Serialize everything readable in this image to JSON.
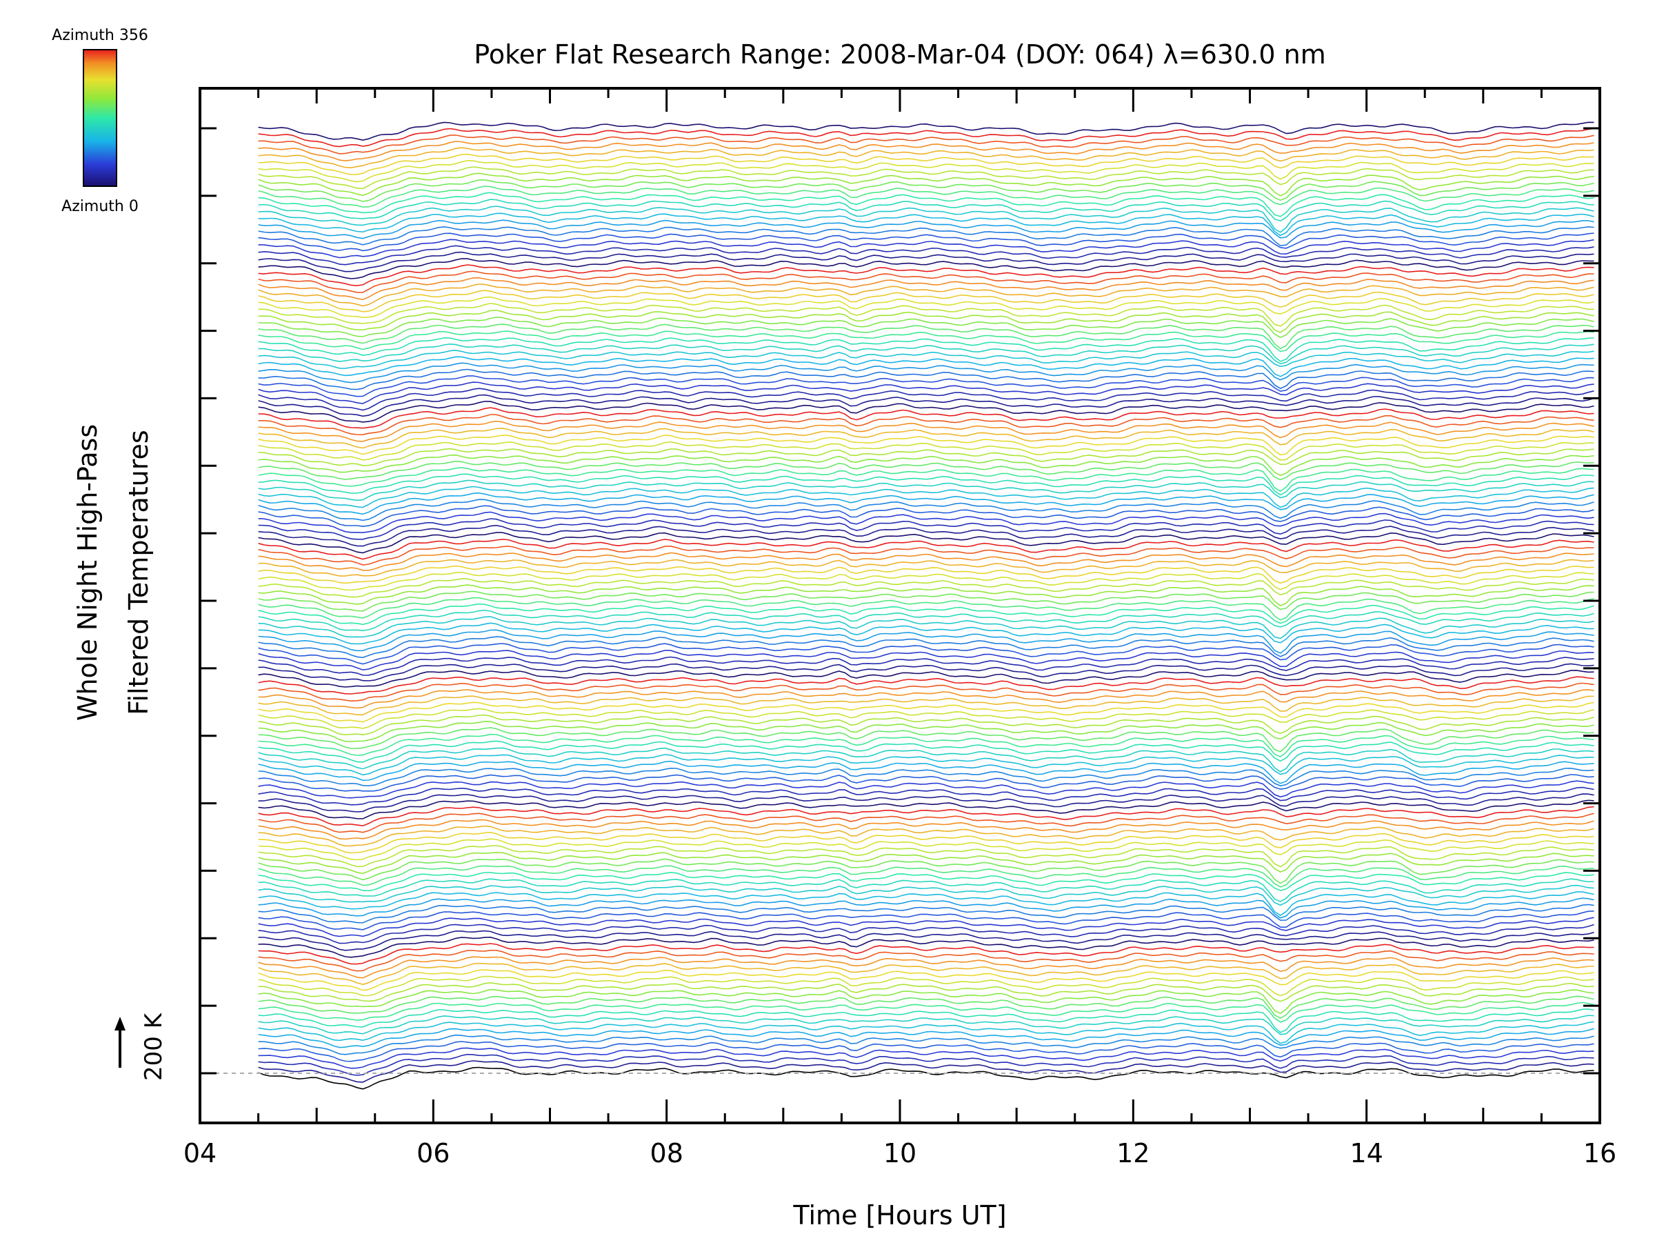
{
  "chart_data": {
    "type": "line",
    "title": "Poker Flat Research Range: 2008-Mar-04 (DOY: 064) λ=630.0 nm",
    "xlabel": "Time [Hours UT]",
    "ylabel_lines": [
      "Whole Night High-Pass",
      "Filtered Temperatures"
    ],
    "x_tick_labels": [
      "04",
      "06",
      "08",
      "10",
      "12",
      "14",
      "16"
    ],
    "xlim": [
      4,
      16
    ],
    "x_minor_step_hours": 0.5,
    "y_major_tick_count": 15,
    "scale_bar_label": "200 K",
    "colorbar": {
      "top_label": "Azimuth 356",
      "bottom_label": "Azimuth 0",
      "min": 0,
      "max": 356,
      "colormap": "rainbow"
    },
    "stacked_series": {
      "count": 146,
      "x_start": 4.5,
      "x_end": 15.95,
      "baseline_dashed": true,
      "azimuth_cycle_lengths": [
        20,
        21,
        20,
        21,
        20,
        22,
        21,
        20
      ],
      "profile_points": [
        [
          4.5,
          0
        ],
        [
          4.8,
          -3
        ],
        [
          5.0,
          -6
        ],
        [
          5.2,
          -10
        ],
        [
          5.4,
          -12
        ],
        [
          5.5,
          -9
        ],
        [
          5.8,
          0
        ],
        [
          6.0,
          2
        ],
        [
          6.2,
          3
        ],
        [
          6.5,
          4
        ],
        [
          6.8,
          1
        ],
        [
          7.0,
          -1
        ],
        [
          7.2,
          0
        ],
        [
          7.5,
          1
        ],
        [
          7.8,
          2
        ],
        [
          8.0,
          3
        ],
        [
          8.2,
          1
        ],
        [
          8.4,
          2
        ],
        [
          8.6,
          0
        ],
        [
          8.8,
          0
        ],
        [
          9.0,
          1
        ],
        [
          9.3,
          0
        ],
        [
          9.5,
          2
        ],
        [
          9.6,
          -3
        ],
        [
          9.8,
          1
        ],
        [
          10.0,
          2
        ],
        [
          10.3,
          1
        ],
        [
          10.6,
          0
        ],
        [
          10.9,
          -1
        ],
        [
          11.0,
          -3
        ],
        [
          11.2,
          -5
        ],
        [
          11.5,
          -4
        ],
        [
          11.8,
          -3
        ],
        [
          12.0,
          0
        ],
        [
          12.3,
          2
        ],
        [
          12.6,
          1
        ],
        [
          12.9,
          0
        ],
        [
          13.1,
          2
        ],
        [
          13.2,
          -1
        ],
        [
          13.3,
          -4
        ],
        [
          13.5,
          0
        ],
        [
          13.8,
          1
        ],
        [
          14.0,
          2
        ],
        [
          14.2,
          3
        ],
        [
          14.4,
          1
        ],
        [
          14.6,
          -3
        ],
        [
          14.8,
          -4
        ],
        [
          15.0,
          -2
        ],
        [
          15.3,
          0
        ],
        [
          15.6,
          2
        ],
        [
          15.95,
          3
        ]
      ],
      "event_dips": [
        {
          "center": 13.25,
          "sigma": 0.07
        },
        {
          "center": 14.45,
          "sigma": 0.12
        }
      ]
    }
  }
}
